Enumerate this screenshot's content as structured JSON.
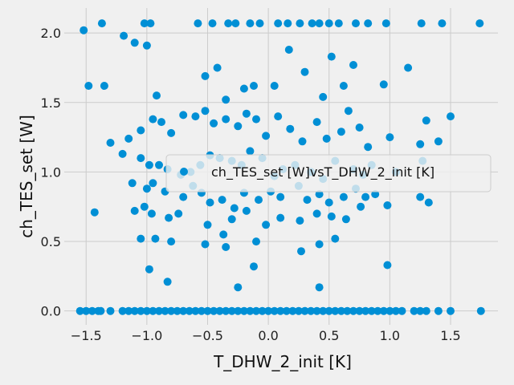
{
  "chart_data": {
    "type": "scatter",
    "xlabel": "T_DHW_2_init [K]",
    "ylabel": "ch_TES_set [W]",
    "xlim": [
      -1.68,
      1.89
    ],
    "ylim": [
      -0.1,
      2.18
    ],
    "xticks": [
      -1.5,
      -1.0,
      -0.5,
      0.0,
      0.5,
      1.0,
      1.5
    ],
    "xtick_labels": [
      "−1.5",
      "−1.0",
      "−0.5",
      "0.0",
      "0.5",
      "1.0",
      "1.5"
    ],
    "yticks": [
      0.0,
      0.5,
      1.0,
      1.5,
      2.0
    ],
    "ytick_labels": [
      "0.0",
      "0.5",
      "1.0",
      "1.5",
      "2.0"
    ],
    "grid": true,
    "legend_placement": "center-right",
    "series": [
      {
        "name": "ch_TES_set [W]vsT_DHW_2_init [K]",
        "color": "#008fd5",
        "x": [
          -1.55,
          -1.5,
          -1.45,
          -1.4,
          -1.38,
          -1.3,
          -1.2,
          -1.15,
          -1.1,
          -1.05,
          -1.0,
          -0.95,
          -0.9,
          -0.85,
          -0.8,
          -0.75,
          -0.7,
          -0.65,
          -0.6,
          -0.55,
          -0.5,
          -0.45,
          -0.4,
          -0.35,
          -0.3,
          -0.25,
          -0.2,
          -0.15,
          -0.1,
          -0.05,
          0.0,
          0.05,
          0.1,
          0.15,
          0.2,
          0.25,
          0.3,
          0.35,
          0.4,
          0.45,
          0.5,
          0.55,
          0.6,
          0.65,
          0.7,
          0.75,
          0.8,
          0.85,
          0.9,
          0.95,
          1.0,
          1.05,
          1.1,
          1.2,
          1.25,
          1.3,
          1.4,
          1.5,
          1.75,
          -1.52,
          -1.37,
          -1.19,
          -1.02,
          -0.97,
          -0.58,
          -0.46,
          -0.33,
          -0.27,
          -0.15,
          -0.07,
          0.08,
          0.16,
          0.26,
          0.36,
          0.42,
          0.5,
          0.58,
          0.72,
          0.82,
          0.97,
          1.26,
          1.43,
          1.74,
          -1.48,
          -1.35,
          -1.1,
          -1.0,
          -0.92,
          -0.52,
          -0.42,
          -0.35,
          -0.2,
          -0.12,
          0.05,
          0.17,
          0.3,
          0.45,
          0.52,
          0.62,
          0.7,
          0.95,
          1.15,
          1.3,
          1.5,
          -1.3,
          -1.15,
          -1.05,
          -0.95,
          -0.88,
          -0.8,
          -0.7,
          -0.6,
          -0.52,
          -0.45,
          -0.35,
          -0.25,
          -0.18,
          -0.1,
          -0.02,
          0.08,
          0.18,
          0.28,
          0.4,
          0.48,
          0.6,
          0.66,
          0.75,
          0.82,
          1.0,
          1.25,
          1.4,
          -1.2,
          -1.05,
          -0.98,
          -0.9,
          -0.83,
          -0.72,
          -0.64,
          -0.56,
          -0.48,
          -0.4,
          -0.3,
          -0.22,
          -0.15,
          -0.05,
          0.05,
          0.12,
          0.22,
          0.35,
          0.45,
          0.55,
          0.7,
          0.78,
          0.85,
          1.05,
          1.27,
          -1.12,
          -1.0,
          -0.95,
          -0.85,
          -0.7,
          -0.62,
          -0.55,
          -0.48,
          -0.38,
          -0.28,
          -0.2,
          -0.08,
          0.02,
          0.1,
          0.25,
          0.32,
          0.42,
          0.5,
          0.62,
          0.72,
          0.8,
          0.88,
          1.25,
          1.32,
          -1.43,
          -1.1,
          -1.02,
          -0.96,
          -0.82,
          -0.74,
          -0.5,
          -0.37,
          -0.3,
          -0.18,
          -0.02,
          0.1,
          0.26,
          0.4,
          0.52,
          0.64,
          0.76,
          0.98,
          -1.05,
          -0.93,
          -0.8,
          -0.52,
          -0.35,
          -0.1,
          0.27,
          0.42,
          0.55,
          0.98,
          -0.98,
          -0.83,
          -0.25,
          -0.12,
          0.42
        ],
        "y": [
          0.0,
          0.0,
          0.0,
          0.0,
          0.0,
          0.0,
          0.0,
          0.0,
          0.0,
          0.0,
          0.0,
          0.0,
          0.0,
          0.0,
          0.0,
          0.0,
          0.0,
          0.0,
          0.0,
          0.0,
          0.0,
          0.0,
          0.0,
          0.0,
          0.0,
          0.0,
          0.0,
          0.0,
          0.0,
          0.0,
          0.0,
          0.0,
          0.0,
          0.0,
          0.0,
          0.0,
          0.0,
          0.0,
          0.0,
          0.0,
          0.0,
          0.0,
          0.0,
          0.0,
          0.0,
          0.0,
          0.0,
          0.0,
          0.0,
          0.0,
          0.0,
          0.0,
          0.0,
          0.0,
          0.0,
          0.0,
          0.0,
          0.0,
          0.0,
          2.02,
          2.07,
          1.98,
          2.07,
          2.07,
          2.07,
          2.07,
          2.07,
          2.07,
          2.07,
          2.07,
          2.07,
          2.07,
          2.07,
          2.07,
          2.07,
          2.07,
          2.07,
          2.07,
          2.07,
          2.07,
          2.07,
          2.07,
          2.07,
          1.62,
          1.62,
          1.93,
          1.91,
          1.55,
          1.69,
          1.75,
          1.52,
          1.6,
          1.62,
          1.62,
          1.88,
          1.72,
          1.54,
          1.83,
          1.62,
          1.77,
          1.63,
          1.75,
          1.37,
          1.4,
          1.21,
          1.24,
          1.3,
          1.38,
          1.36,
          1.28,
          1.41,
          1.4,
          1.44,
          1.35,
          1.38,
          1.33,
          1.42,
          1.38,
          1.26,
          1.4,
          1.31,
          1.22,
          1.36,
          1.24,
          1.29,
          1.44,
          1.32,
          1.18,
          1.25,
          1.2,
          1.22,
          1.13,
          1.1,
          1.05,
          1.05,
          1.02,
          0.98,
          1.0,
          1.05,
          1.12,
          1.1,
          1.08,
          1.05,
          1.15,
          1.1,
          0.97,
          1.02,
          1.05,
          1.0,
          0.95,
          1.08,
          1.02,
          0.98,
          1.05,
          1.0,
          1.08,
          0.92,
          0.88,
          0.92,
          0.86,
          0.82,
          0.9,
          0.85,
          0.78,
          0.8,
          0.74,
          0.85,
          0.8,
          0.86,
          0.82,
          0.9,
          0.8,
          0.84,
          0.78,
          0.82,
          0.88,
          0.82,
          0.84,
          0.82,
          0.78,
          0.71,
          0.72,
          0.75,
          0.7,
          0.67,
          0.7,
          0.62,
          0.55,
          0.66,
          0.72,
          0.62,
          0.67,
          0.65,
          0.7,
          0.68,
          0.66,
          0.75,
          0.76,
          0.52,
          0.52,
          0.5,
          0.48,
          0.46,
          0.5,
          0.43,
          0.48,
          0.52,
          0.33,
          0.3,
          0.21,
          0.17,
          0.32,
          0.17
        ]
      }
    ]
  }
}
